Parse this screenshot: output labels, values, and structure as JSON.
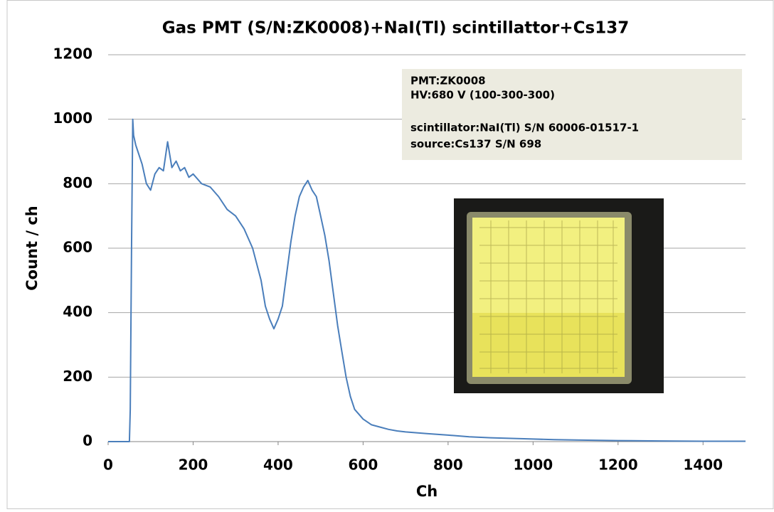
{
  "chart_data": {
    "type": "line",
    "title": "Gas PMT (S/N:ZK0008)+NaI(Tl) scintillattor+Cs137",
    "xlabel": "Ch",
    "ylabel": "Count / ch",
    "annotations": [
      "PMT:ZK0008",
      "HV:680 V  (100-300-300)",
      "scintillator:NaI(Tl) S/N 60006-01517-1",
      "source:Cs137  S/N 698"
    ],
    "x": [
      0,
      40,
      50,
      52,
      55,
      58,
      60,
      65,
      70,
      80,
      90,
      100,
      110,
      120,
      130,
      140,
      150,
      160,
      170,
      180,
      190,
      200,
      220,
      240,
      260,
      280,
      300,
      320,
      340,
      360,
      370,
      380,
      390,
      400,
      410,
      420,
      430,
      440,
      450,
      460,
      470,
      480,
      490,
      500,
      510,
      520,
      530,
      540,
      550,
      560,
      570,
      580,
      600,
      620,
      640,
      660,
      680,
      700,
      750,
      800,
      850,
      900,
      950,
      1000,
      1050,
      1100,
      1200,
      1300,
      1400,
      1500
    ],
    "series": [
      {
        "color": "#4a7ebb",
        "values": [
          0,
          0,
          0,
          100,
          600,
          1000,
          950,
          920,
          900,
          860,
          800,
          780,
          830,
          850,
          840,
          930,
          850,
          870,
          840,
          850,
          820,
          830,
          800,
          790,
          760,
          720,
          700,
          660,
          600,
          500,
          420,
          380,
          350,
          380,
          420,
          520,
          620,
          700,
          760,
          790,
          810,
          780,
          760,
          700,
          640,
          560,
          460,
          360,
          280,
          200,
          140,
          100,
          70,
          52,
          45,
          38,
          33,
          30,
          25,
          20,
          15,
          12,
          10,
          8,
          6,
          5,
          3,
          2,
          1,
          1
        ]
      }
    ],
    "xlim": [
      0,
      1500
    ],
    "xticks": [
      0,
      200,
      400,
      600,
      800,
      1000,
      1200,
      1400
    ],
    "ylim": [
      0,
      1200
    ],
    "yticks": [
      0,
      200,
      400,
      600,
      800,
      1000,
      1200
    ],
    "grid": true
  }
}
